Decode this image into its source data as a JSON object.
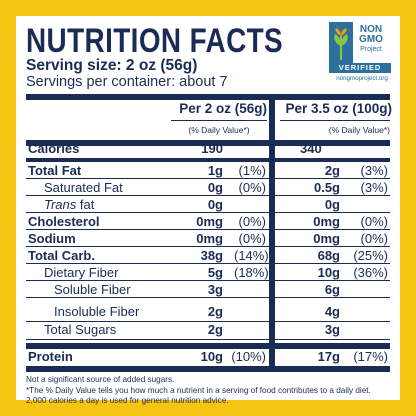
{
  "title": "NUTRITION FACTS",
  "serving_size": "Serving size: 2 oz (56g)",
  "servings_per_container": "Servings per container: about 7",
  "badge": {
    "line1": "NON",
    "line2": "GMO",
    "line3": "Project",
    "verified": "VERIFIED",
    "url": "nongmoproject.org",
    "color": "#2d6f9e",
    "icon": "butterfly-icon"
  },
  "columns": {
    "col1_header": "Per 2 oz (56g)",
    "col2_header": "Per 3.5 oz (100g)",
    "dv_header": "(% Daily Value*)"
  },
  "rows": [
    {
      "name": "Calories",
      "v1": "190",
      "d1": "",
      "v2": "340",
      "d2": ""
    },
    {
      "name": "Total Fat",
      "v1": "1g",
      "d1": "(1%)",
      "v2": "2g",
      "d2": "(3%)"
    },
    {
      "name": "Saturated Fat",
      "v1": "0g",
      "d1": "(0%)",
      "v2": "0.5g",
      "d2": "(3%)"
    },
    {
      "name_italic": "Trans",
      "name_rest": " fat",
      "v1": "0g",
      "d1": "",
      "v2": "0g",
      "d2": ""
    },
    {
      "name": "Cholesterol",
      "v1": "0mg",
      "d1": "(0%)",
      "v2": "0mg",
      "d2": "(0%)"
    },
    {
      "name": "Sodium",
      "v1": "0mg",
      "d1": "(0%)",
      "v2": "0mg",
      "d2": "(0%)"
    },
    {
      "name": "Total Carb.",
      "v1": "38g",
      "d1": "(14%)",
      "v2": "68g",
      "d2": "(25%)"
    },
    {
      "name": "Dietary Fiber",
      "v1": "5g",
      "d1": "(18%)",
      "v2": "10g",
      "d2": "(36%)"
    },
    {
      "name": "Soluble Fiber",
      "v1": "3g",
      "d1": "",
      "v2": "6g",
      "d2": ""
    },
    {
      "name": "Insoluble Fiber",
      "v1": "2g",
      "d1": "",
      "v2": "4g",
      "d2": ""
    },
    {
      "name": "Total Sugars",
      "v1": "2g",
      "d1": "",
      "v2": "3g",
      "d2": ""
    },
    {
      "name": "Protein",
      "v1": "10g",
      "d1": "(10%)",
      "v2": "17g",
      "d2": "(17%)"
    }
  ],
  "footnotes": {
    "added_sugars": "Not a significant source of added sugars.",
    "dv_line1": "*The % Daily Value tells you how much a nutrient in a serving of food contributes to a daily diet.",
    "dv_line2": "2,000 calories a day is used for general nutrition advice."
  },
  "colors": {
    "border": "#f6c514",
    "text": "#1a2c55"
  }
}
